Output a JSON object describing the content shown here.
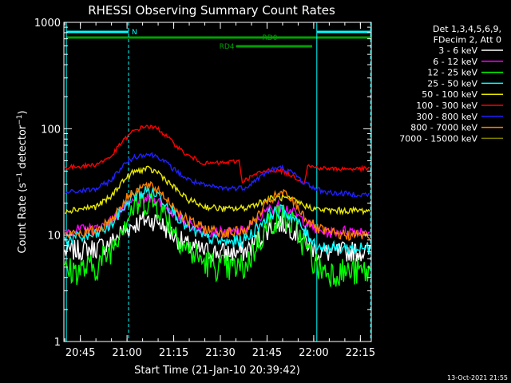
{
  "chart_data": {
    "type": "line",
    "title": "RHESSI Observing Summary Count Rates",
    "xlabel": "Start Time (21-Jan-10 20:39:42)",
    "ylabel": "Count Rate (s⁻¹ detector⁻¹)",
    "yscale": "log",
    "ylim": [
      1,
      1000
    ],
    "x_unit": "minutes after 20:00 UT",
    "xlim": [
      39.7,
      138.5
    ],
    "x_ticks": [
      {
        "v": 45,
        "label": "20:45"
      },
      {
        "v": 60,
        "label": "21:00"
      },
      {
        "v": 75,
        "label": "21:15"
      },
      {
        "v": 90,
        "label": "21:30"
      },
      {
        "v": 105,
        "label": "21:45"
      },
      {
        "v": 120,
        "label": "22:00"
      },
      {
        "v": 135,
        "label": "22:15"
      }
    ],
    "y_ticks": [
      {
        "v": 1,
        "label": "1"
      },
      {
        "v": 10,
        "label": "10"
      },
      {
        "v": 100,
        "label": "100"
      },
      {
        "v": 1000,
        "label": "1000"
      }
    ],
    "grid": false,
    "legend": {
      "placement": "right",
      "header": [
        "Det 1,3,4,5,6,9,",
        "FDecim 2, Att 0"
      ]
    },
    "series": [
      {
        "name": "3 - 6 keV",
        "color": "#ffffff",
        "x": [
          40,
          50,
          55,
          58,
          62,
          66,
          70,
          74,
          79,
          85,
          92,
          98,
          102,
          106,
          110,
          114,
          117,
          121,
          125,
          130,
          138
        ],
        "y": [
          7,
          7.5,
          8.5,
          10.5,
          12.5,
          14,
          13.5,
          10.5,
          8,
          7,
          6.8,
          7,
          9,
          12,
          13,
          11,
          9,
          7,
          6.8,
          7,
          7
        ]
      },
      {
        "name": "6 - 12 keV",
        "color": "#ff00ff",
        "x": [
          40,
          50,
          55,
          58,
          62,
          66,
          70,
          74,
          79,
          85,
          92,
          98,
          102,
          106,
          110,
          114,
          117,
          121,
          125,
          130,
          138
        ],
        "y": [
          11,
          11.5,
          13.5,
          17,
          20.5,
          22,
          21,
          17,
          13,
          11,
          10.5,
          11,
          14,
          18,
          19,
          16,
          13.5,
          11,
          10.5,
          11,
          11
        ]
      },
      {
        "name": "12 - 25 keV",
        "color": "#00ff00",
        "x": [
          40,
          50,
          55,
          58,
          62,
          66,
          70,
          74,
          79,
          85,
          92,
          98,
          102,
          106,
          110,
          114,
          117,
          121,
          125,
          130,
          138
        ],
        "y": [
          4.5,
          5,
          7.5,
          12,
          18,
          21,
          19,
          13,
          7.5,
          5.5,
          4.8,
          5,
          8.5,
          13.5,
          15,
          12,
          8,
          5,
          4.5,
          4.5,
          4.5
        ]
      },
      {
        "name": "25 - 50 keV",
        "color": "#00ffff",
        "x": [
          40,
          50,
          55,
          58,
          62,
          66,
          70,
          74,
          79,
          85,
          92,
          98,
          102,
          106,
          110,
          114,
          117,
          121,
          125,
          130,
          138
        ],
        "y": [
          9,
          10,
          12.5,
          17,
          23,
          26,
          24,
          18,
          12,
          9.5,
          8.5,
          9,
          12,
          16,
          17,
          14,
          11,
          8,
          7.5,
          7.5,
          7.5
        ]
      },
      {
        "name": "50 - 100 keV",
        "color": "#e8e800",
        "x": [
          40,
          50,
          55,
          58,
          62,
          66,
          70,
          74,
          79,
          85,
          92,
          98,
          102,
          106,
          110,
          114,
          117,
          121,
          125,
          130,
          138
        ],
        "y": [
          17,
          18.5,
          23,
          31,
          39,
          42,
          39,
          30,
          22,
          18.5,
          17.5,
          18,
          20,
          22,
          22.5,
          21,
          19,
          17.5,
          17,
          17,
          17
        ]
      },
      {
        "name": "100 - 300 keV",
        "color": "#ff0000",
        "x": [
          40,
          50,
          55,
          58,
          62,
          66,
          70,
          74,
          79,
          85,
          92,
          96,
          97,
          102,
          106,
          110,
          114,
          117,
          118,
          121,
          125,
          130,
          138
        ],
        "y": [
          43,
          46,
          55,
          73,
          95,
          106,
          100,
          78,
          57,
          47,
          48,
          50,
          32,
          38,
          41,
          40,
          35,
          31,
          45,
          43,
          42,
          42,
          42
        ]
      },
      {
        "name": "300 - 800 keV",
        "color": "#2020ff",
        "x": [
          40,
          50,
          55,
          58,
          62,
          66,
          70,
          74,
          79,
          85,
          92,
          98,
          102,
          106,
          110,
          114,
          117,
          121,
          125,
          130,
          138
        ],
        "y": [
          25,
          27,
          33,
          43,
          54,
          58,
          55,
          44,
          34,
          29,
          27.5,
          28,
          34,
          41,
          43,
          37,
          31,
          27,
          25,
          24.5,
          24
        ]
      },
      {
        "name": "800 - 7000 keV",
        "color": "#ff8000",
        "x": [
          40,
          50,
          55,
          58,
          62,
          66,
          70,
          74,
          79,
          85,
          92,
          98,
          102,
          106,
          110,
          114,
          117,
          121,
          125,
          130,
          138
        ],
        "y": [
          10,
          11,
          14,
          19,
          26,
          29,
          27,
          20,
          14,
          11.5,
          10.5,
          11,
          15,
          21.5,
          25,
          20,
          15,
          11.5,
          10.5,
          10,
          10
        ]
      },
      {
        "name": "7000 - 15000 keV",
        "color": "#808000",
        "x": [],
        "y": []
      }
    ],
    "flags": [
      {
        "label": "N",
        "color": "#00ffff",
        "segments": [
          [
            40.5,
            60.5
          ],
          [
            121,
            138.3
          ]
        ]
      },
      {
        "label": "RD0",
        "color": "#00a000",
        "segments": [
          [
            40.5,
            138.3
          ]
        ]
      },
      {
        "label": "RD4",
        "color": "#00a000",
        "segments": [
          [
            95,
            119.5
          ]
        ]
      }
    ],
    "timestamp": "13-Oct-2021 21:55"
  }
}
